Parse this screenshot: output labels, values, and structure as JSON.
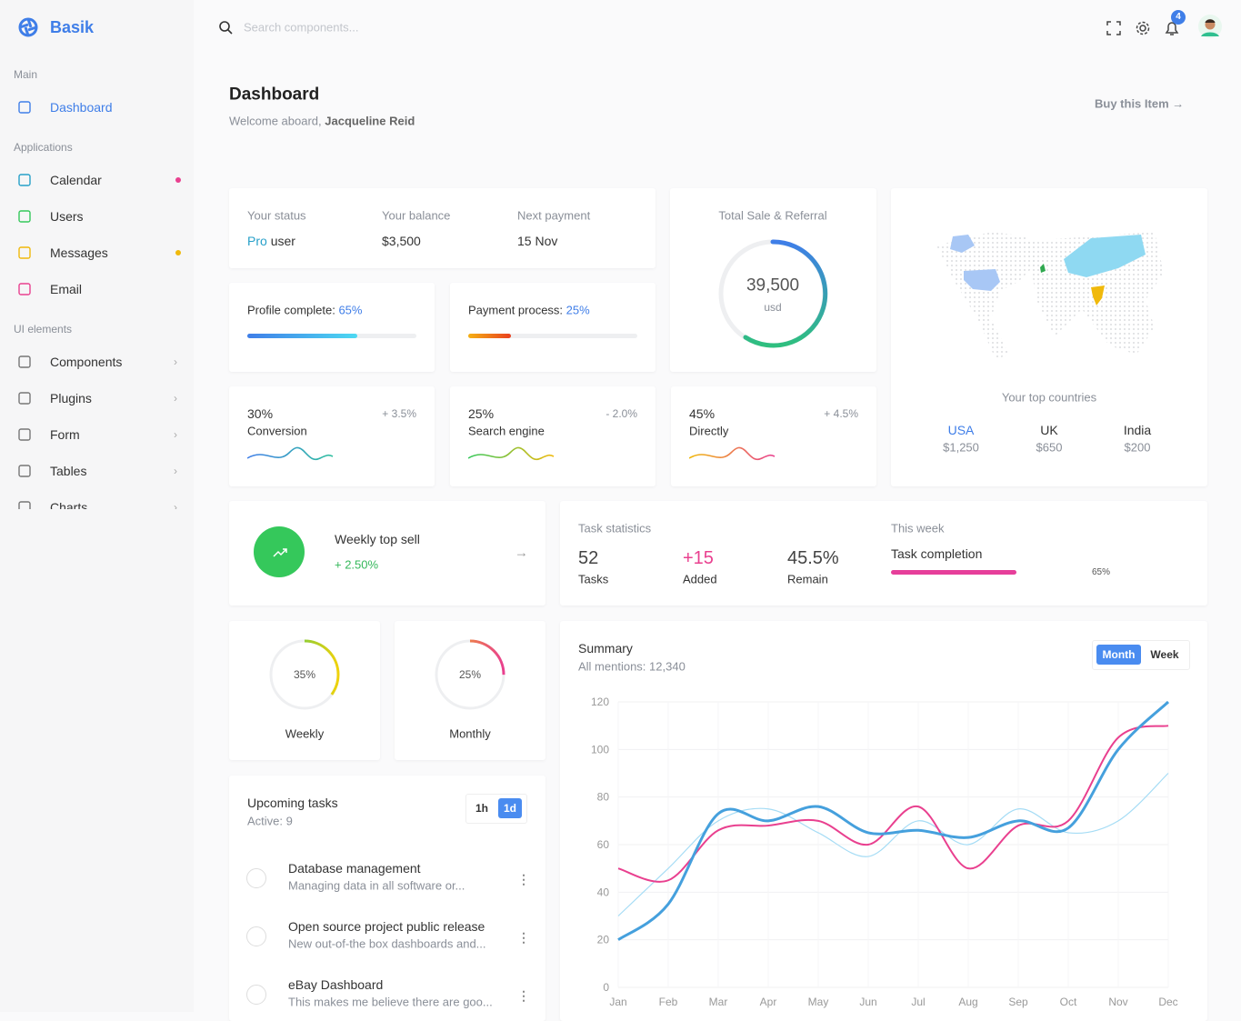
{
  "brand": "Basik",
  "search_placeholder": "Search components...",
  "notifications": "4",
  "sidebar": [
    {
      "title": "Main",
      "items": [
        "Dashboard"
      ]
    },
    {
      "title": "Applications",
      "items": [
        "Calendar",
        "Users",
        "Messages",
        "Email"
      ]
    },
    {
      "title": "UI elements",
      "items": [
        "Components",
        "Plugins",
        "Form",
        "Tables",
        "Charts"
      ]
    }
  ],
  "header": {
    "title": "Dashboard",
    "welcome": "Welcome aboard,",
    "user": "Jacqueline Reid",
    "buy": "Buy this Item"
  },
  "status": [
    {
      "label": "Your status",
      "highlight": "Pro",
      "value": "user"
    },
    {
      "label": "Your balance",
      "value": "$3,500"
    },
    {
      "label": "Next payment",
      "value": "15 Nov"
    }
  ],
  "profile": {
    "label": "Profile complete:",
    "value": 65,
    "value_label": "65%"
  },
  "payment": {
    "label": "Payment process:",
    "value": 25,
    "value_label": "25%"
  },
  "stats": [
    {
      "value": "30%",
      "label": "Conversion",
      "change": "+ 3.5%"
    },
    {
      "value": "25%",
      "label": "Search engine",
      "change": "- 2.0%"
    },
    {
      "value": "45%",
      "label": "Directly",
      "change": "+ 4.5%"
    }
  ],
  "total_sale": {
    "title": "Total Sale & Referral",
    "value": "39,500",
    "unit": "usd"
  },
  "countries": {
    "title": "Your top countries",
    "items": [
      {
        "name": "USA",
        "value": "$1,250"
      },
      {
        "name": "UK",
        "value": "$650"
      },
      {
        "name": "India",
        "value": "$200"
      }
    ]
  },
  "weekly_top": {
    "title": "Weekly top sell",
    "value": "+ 2.50%"
  },
  "task_stats": {
    "title": "Task statistics",
    "items": [
      {
        "value": "52",
        "label": "Tasks"
      },
      {
        "value": "+15",
        "label": "Added"
      },
      {
        "value": "45.5%",
        "label": "Remain"
      }
    ],
    "week_title": "This week",
    "completion": {
      "label": "Task completion",
      "value": 65,
      "value_label": "65%"
    }
  },
  "donuts": [
    {
      "value": 35,
      "value_label": "35%",
      "label": "Weekly"
    },
    {
      "value": 25,
      "value_label": "25%",
      "label": "Monthly"
    }
  ],
  "tasks": {
    "title": "Upcoming tasks",
    "active": "Active: 9",
    "tabs": [
      "1h",
      "1d"
    ],
    "items": [
      {
        "title": "Database management",
        "desc": "Managing data in all software or..."
      },
      {
        "title": "Open source project public release",
        "desc": "New out-of-the box dashboards and..."
      },
      {
        "title": "eBay Dashboard",
        "desc": "This makes me believe there are goo..."
      }
    ]
  },
  "summary": {
    "title": "Summary",
    "subtitle": "All mentions: 12,340",
    "tabs": [
      "Month",
      "Week"
    ],
    "chart": {
      "type": "line",
      "categories": [
        "Jan",
        "Feb",
        "Mar",
        "Apr",
        "May",
        "Jun",
        "Jul",
        "Aug",
        "Sep",
        "Oct",
        "Nov",
        "Dec"
      ],
      "series": [
        {
          "color": "#a5dcf5",
          "values": [
            30,
            50,
            70,
            75,
            65,
            55,
            70,
            60,
            75,
            65,
            70,
            90
          ]
        },
        {
          "color": "#e9408f",
          "values": [
            50,
            45,
            66,
            68,
            70,
            60,
            76,
            50,
            68,
            70,
            105,
            110
          ]
        },
        {
          "color": "#45a0dd",
          "values": [
            20,
            35,
            73,
            70,
            76,
            65,
            66,
            63,
            70,
            67,
            100,
            120
          ]
        }
      ],
      "ylim": [
        0,
        120
      ],
      "yticks": [
        0,
        20,
        40,
        60,
        80,
        100,
        120
      ],
      "grid": true
    }
  }
}
